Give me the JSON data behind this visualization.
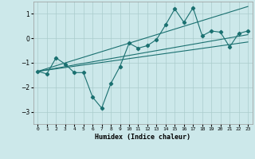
{
  "xlabel": "Humidex (Indice chaleur)",
  "xlim": [
    -0.5,
    23.5
  ],
  "ylim": [
    -3.5,
    1.5
  ],
  "yticks": [
    -3,
    -2,
    -1,
    0,
    1
  ],
  "xticks": [
    0,
    1,
    2,
    3,
    4,
    5,
    6,
    7,
    8,
    9,
    10,
    11,
    12,
    13,
    14,
    15,
    16,
    17,
    18,
    19,
    20,
    21,
    22,
    23
  ],
  "bg_color": "#cce8ea",
  "grid_color": "#aacccc",
  "line_color": "#1a7070",
  "data_x": [
    0,
    1,
    2,
    3,
    4,
    5,
    6,
    7,
    8,
    9,
    10,
    11,
    12,
    13,
    14,
    15,
    16,
    17,
    18,
    19,
    20,
    21,
    22,
    23
  ],
  "data_y": [
    -1.35,
    -1.45,
    -0.8,
    -1.05,
    -1.4,
    -1.4,
    -2.4,
    -2.85,
    -1.85,
    -1.15,
    -0.2,
    -0.4,
    -0.3,
    -0.05,
    0.55,
    1.2,
    0.65,
    1.25,
    0.1,
    0.3,
    0.25,
    -0.35,
    0.2,
    0.3
  ],
  "upper_line": [
    [
      0,
      23
    ],
    [
      -1.35,
      1.3
    ]
  ],
  "mid_line": [
    [
      0,
      23
    ],
    [
      -1.35,
      0.15
    ]
  ],
  "lower_line": [
    [
      0,
      23
    ],
    [
      -1.35,
      -0.15
    ]
  ]
}
